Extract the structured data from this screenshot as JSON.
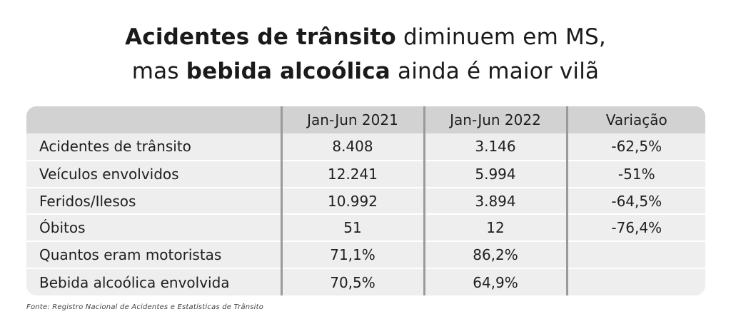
{
  "title": {
    "line1": {
      "bold": "Acidentes de trânsito",
      "light": " diminuem em MS,"
    },
    "line2": {
      "light_before": "mas ",
      "bold": "bebida alcoólica",
      "light_after": " ainda é maior vilã"
    }
  },
  "table": {
    "headers": [
      "",
      "Jan-Jun 2021",
      "Jan-Jun 2022",
      "Variação"
    ],
    "rows": [
      {
        "label": "Acidentes de trânsito",
        "y2021": "8.408",
        "y2022": "3.146",
        "variation": "-62,5%"
      },
      {
        "label": "Veículos envolvidos",
        "y2021": "12.241",
        "y2022": "5.994",
        "variation": "-51%"
      },
      {
        "label": "Feridos/Ilesos",
        "y2021": "10.992",
        "y2022": "3.894",
        "variation": "-64,5%"
      },
      {
        "label": "Óbitos",
        "y2021": "51",
        "y2022": "12",
        "variation": "-76,4%"
      },
      {
        "label": "Quantos eram motoristas",
        "y2021": "71,1%",
        "y2022": "86,2%",
        "variation": ""
      },
      {
        "label": "Bebida alcoólica envolvida",
        "y2021": "70,5%",
        "y2022": "64,9%",
        "variation": ""
      }
    ]
  },
  "source": "Fonte: Registro Nacional de Acidentes e Estatísticas de Trânsito",
  "colors": {
    "header_bg": "#d2d2d2",
    "body_bg": "#eeeeee",
    "separator": "#9a9a9a"
  }
}
